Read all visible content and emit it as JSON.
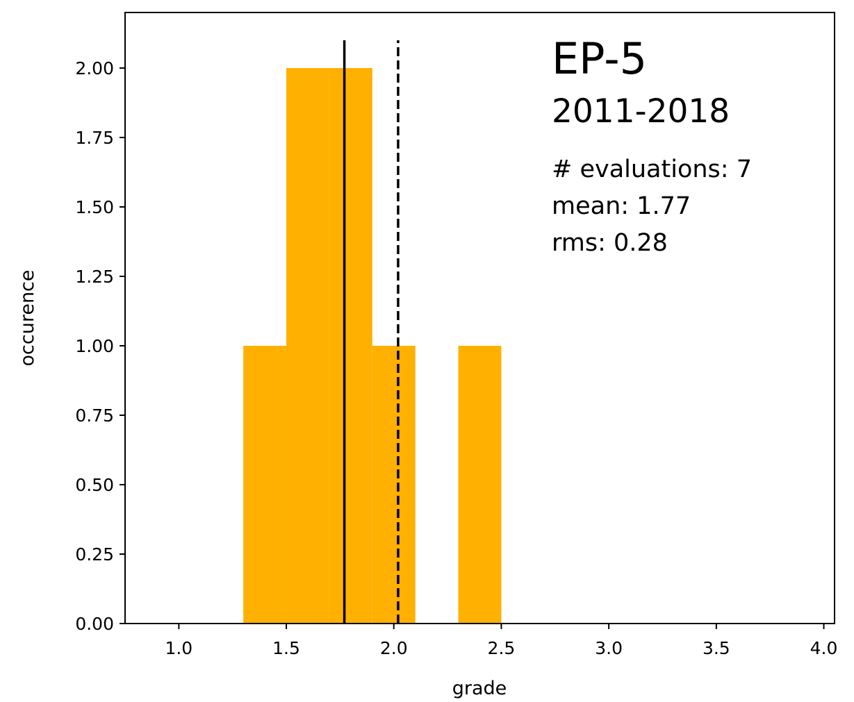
{
  "chart_data": {
    "type": "bar",
    "xlabel": "grade",
    "ylabel": "occurence",
    "xlim": [
      0.75,
      4.05
    ],
    "ylim": [
      0,
      2.2
    ],
    "x_ticks": [
      1.0,
      1.5,
      2.0,
      2.5,
      3.0,
      3.5,
      4.0
    ],
    "x_tick_labels": [
      "1.0",
      "1.5",
      "2.0",
      "2.5",
      "3.0",
      "3.5",
      "4.0"
    ],
    "y_ticks": [
      0,
      0.25,
      0.5,
      0.75,
      1.0,
      1.25,
      1.5,
      1.75,
      2.0
    ],
    "y_tick_labels": [
      "0.00",
      "0.25",
      "0.50",
      "0.75",
      "1.00",
      "1.25",
      "1.50",
      "1.75",
      "2.00"
    ],
    "bars": [
      {
        "x0": 1.3,
        "x1": 1.5,
        "value": 1
      },
      {
        "x0": 1.5,
        "x1": 1.7,
        "value": 2
      },
      {
        "x0": 1.7,
        "x1": 1.9,
        "value": 2
      },
      {
        "x0": 1.9,
        "x1": 2.1,
        "value": 1
      },
      {
        "x0": 2.1,
        "x1": 2.3,
        "value": 0
      },
      {
        "x0": 2.3,
        "x1": 2.5,
        "value": 1
      }
    ],
    "bar_color": "#ffb000",
    "vlines": [
      {
        "x": 1.77,
        "style": "solid",
        "y_top": 2.1
      },
      {
        "x": 2.02,
        "style": "dashed",
        "y_top": 2.1
      }
    ],
    "grid": false,
    "annotation": {
      "title": "EP-5",
      "subtitle": "2011-2018",
      "lines": [
        "# evaluations: 7",
        "mean: 1.77",
        "rms: 0.28"
      ]
    }
  }
}
